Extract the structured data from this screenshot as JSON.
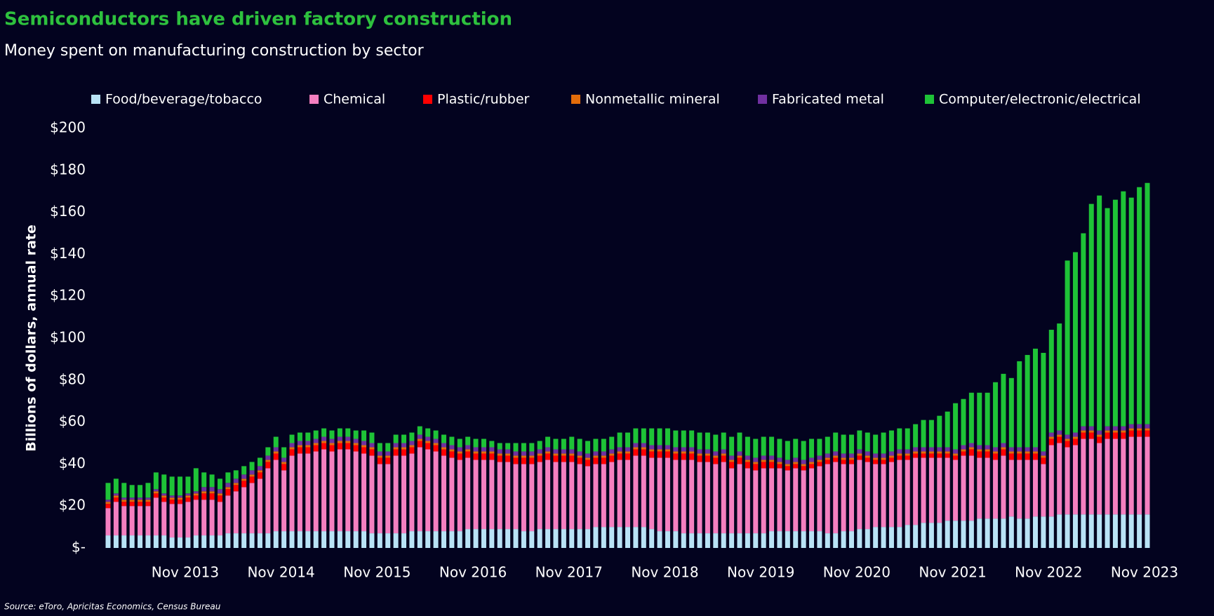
{
  "chart_data": {
    "type": "stacked_bar",
    "title": "Semiconductors have driven factory construction",
    "subtitle": "Money spent on manufacturing construction by sector",
    "y_label": "Billions of dollars, annual rate",
    "source": "Source: eToro, Apricitas Economics, Census Bureau",
    "background": "#03031f",
    "legend": "top",
    "ylim": [
      0,
      200
    ],
    "yticks": [
      {
        "value": 0,
        "label": "$-"
      },
      {
        "value": 20,
        "label": "$20"
      },
      {
        "value": 40,
        "label": "$40"
      },
      {
        "value": 60,
        "label": "$60"
      },
      {
        "value": 80,
        "label": "$80"
      },
      {
        "value": 100,
        "label": "$100"
      },
      {
        "value": 120,
        "label": "$120"
      },
      {
        "value": 140,
        "label": "$140"
      },
      {
        "value": 160,
        "label": "$160"
      },
      {
        "value": 180,
        "label": "$180"
      },
      {
        "value": 200,
        "label": "$200"
      }
    ],
    "categories": [
      null,
      null,
      null,
      null,
      null,
      null,
      null,
      null,
      null,
      null,
      "Nov 2013",
      null,
      null,
      null,
      null,
      null,
      null,
      null,
      null,
      null,
      null,
      null,
      "Nov 2014",
      null,
      null,
      null,
      null,
      null,
      null,
      null,
      null,
      null,
      null,
      null,
      "Nov 2015",
      null,
      null,
      null,
      null,
      null,
      null,
      null,
      null,
      null,
      null,
      null,
      "Nov 2016",
      null,
      null,
      null,
      null,
      null,
      null,
      null,
      null,
      null,
      null,
      null,
      "Nov 2017",
      null,
      null,
      null,
      null,
      null,
      null,
      null,
      null,
      null,
      null,
      null,
      "Nov 2018",
      null,
      null,
      null,
      null,
      null,
      null,
      null,
      null,
      null,
      null,
      null,
      "Nov 2019",
      null,
      null,
      null,
      null,
      null,
      null,
      null,
      null,
      null,
      null,
      null,
      "Nov 2020",
      null,
      null,
      null,
      null,
      null,
      null,
      null,
      null,
      null,
      null,
      null,
      "Nov 2021",
      null,
      null,
      null,
      null,
      null,
      null,
      null,
      null,
      null,
      null,
      null,
      "Nov 2022",
      null,
      null,
      null,
      null,
      null,
      null,
      null,
      null,
      null,
      null,
      null,
      "Nov 2023"
    ],
    "series": [
      {
        "name": "Food/beverage/tobacco",
        "color": "#b9e3f6",
        "values": [
          6,
          6,
          6,
          6,
          6,
          6,
          6,
          6,
          5,
          5,
          5,
          6,
          6,
          6,
          6,
          7,
          7,
          7,
          7,
          7,
          7,
          8,
          8,
          8,
          8,
          8,
          8,
          8,
          8,
          8,
          8,
          8,
          8,
          7,
          7,
          7,
          7,
          7,
          8,
          8,
          8,
          8,
          8,
          8,
          8,
          9,
          9,
          9,
          9,
          9,
          9,
          9,
          8,
          8,
          9,
          9,
          9,
          9,
          9,
          9,
          9,
          10,
          10,
          10,
          10,
          10,
          10,
          10,
          9,
          8,
          8,
          8,
          7,
          7,
          7,
          7,
          7,
          7,
          7,
          7,
          7,
          7,
          7,
          8,
          8,
          8,
          8,
          8,
          8,
          8,
          7,
          7,
          8,
          8,
          9,
          9,
          10,
          10,
          10,
          10,
          11,
          11,
          12,
          12,
          12,
          13,
          13,
          13,
          13,
          14,
          14,
          14,
          14,
          15,
          14,
          14,
          15,
          15,
          15,
          16,
          16,
          16,
          16,
          16,
          16,
          16,
          16,
          16,
          16,
          16,
          16
        ]
      },
      {
        "name": "Chemical",
        "color": "#f47fc0",
        "values": [
          13,
          16,
          14,
          14,
          14,
          14,
          18,
          16,
          16,
          16,
          17,
          17,
          17,
          17,
          16,
          18,
          20,
          22,
          24,
          26,
          31,
          34,
          29,
          36,
          37,
          37,
          38,
          39,
          38,
          39,
          39,
          38,
          37,
          37,
          33,
          33,
          37,
          37,
          37,
          40,
          39,
          38,
          36,
          35,
          34,
          34,
          33,
          33,
          33,
          32,
          32,
          31,
          32,
          32,
          32,
          33,
          32,
          32,
          32,
          31,
          30,
          30,
          30,
          31,
          32,
          32,
          34,
          34,
          34,
          35,
          35,
          34,
          35,
          35,
          34,
          34,
          33,
          34,
          31,
          33,
          31,
          30,
          31,
          30,
          30,
          29,
          30,
          29,
          30,
          31,
          33,
          34,
          32,
          32,
          33,
          32,
          30,
          30,
          31,
          32,
          31,
          32,
          31,
          31,
          31,
          30,
          29,
          31,
          31,
          29,
          29,
          28,
          30,
          27,
          28,
          28,
          27,
          25,
          34,
          34,
          32,
          33,
          36,
          36,
          34,
          36,
          36,
          36,
          37,
          37,
          37
        ]
      },
      {
        "name": "Plastic/rubber",
        "color": "#ff0000",
        "values": [
          2,
          2,
          2,
          2,
          2,
          2,
          2,
          2,
          2,
          2,
          2,
          2,
          3,
          3,
          3,
          3,
          3,
          3,
          3,
          3,
          3,
          3,
          3,
          3,
          3,
          3,
          3,
          3,
          3,
          3,
          3,
          3,
          3,
          3,
          3,
          3,
          3,
          3,
          3,
          3,
          3,
          3,
          3,
          3,
          3,
          3,
          3,
          3,
          3,
          3,
          3,
          3,
          3,
          3,
          3,
          3,
          3,
          3,
          3,
          3,
          3,
          3,
          3,
          3,
          3,
          3,
          3,
          3,
          3,
          3,
          3,
          3,
          3,
          3,
          3,
          3,
          3,
          3,
          3,
          3,
          3,
          3,
          3,
          3,
          2,
          2,
          2,
          2,
          2,
          2,
          2,
          2,
          2,
          2,
          2,
          2,
          2,
          2,
          2,
          2,
          2,
          2,
          2,
          2,
          2,
          2,
          2,
          2,
          3,
          3,
          3,
          3,
          3,
          3,
          3,
          3,
          3,
          3,
          3,
          3,
          3,
          3,
          3,
          3,
          3,
          3,
          3,
          3,
          3,
          3,
          3
        ]
      },
      {
        "name": "Nonmetallic mineral",
        "color": "#e36c0a",
        "values": [
          1,
          1,
          1,
          1,
          1,
          1,
          1,
          1,
          1,
          1,
          1,
          1,
          1,
          1,
          1,
          1,
          1,
          1,
          1,
          1,
          1,
          1,
          1,
          1,
          1,
          1,
          1,
          1,
          1,
          1,
          1,
          1,
          1,
          1,
          1,
          1,
          1,
          1,
          1,
          1,
          1,
          1,
          1,
          1,
          1,
          1,
          1,
          1,
          1,
          1,
          1,
          1,
          1,
          1,
          1,
          1,
          1,
          1,
          1,
          1,
          1,
          1,
          1,
          1,
          1,
          1,
          1,
          1,
          1,
          1,
          1,
          1,
          1,
          1,
          1,
          1,
          1,
          1,
          1,
          1,
          1,
          1,
          1,
          1,
          1,
          1,
          1,
          1,
          1,
          1,
          1,
          1,
          1,
          1,
          1,
          1,
          1,
          1,
          1,
          1,
          1,
          1,
          1,
          1,
          1,
          1,
          1,
          1,
          1,
          1,
          1,
          1,
          1,
          1,
          1,
          1,
          1,
          1,
          1,
          1,
          1,
          1,
          1,
          1,
          1,
          1,
          1,
          1,
          1,
          1,
          1
        ]
      },
      {
        "name": "Fabricated metal",
        "color": "#7030a0",
        "values": [
          1,
          1,
          1,
          1,
          1,
          1,
          1,
          1,
          1,
          1,
          1,
          1,
          2,
          2,
          2,
          2,
          2,
          2,
          2,
          2,
          2,
          2,
          2,
          2,
          2,
          2,
          2,
          2,
          2,
          2,
          2,
          2,
          2,
          2,
          2,
          2,
          2,
          2,
          2,
          2,
          2,
          2,
          2,
          2,
          2,
          2,
          2,
          2,
          2,
          2,
          2,
          2,
          2,
          2,
          2,
          2,
          2,
          2,
          2,
          2,
          2,
          2,
          2,
          2,
          2,
          2,
          2,
          2,
          2,
          2,
          2,
          2,
          2,
          2,
          2,
          2,
          2,
          2,
          2,
          2,
          2,
          2,
          2,
          2,
          2,
          2,
          2,
          2,
          2,
          2,
          2,
          2,
          2,
          2,
          2,
          2,
          2,
          2,
          2,
          2,
          2,
          2,
          2,
          2,
          2,
          2,
          2,
          2,
          2,
          2,
          2,
          2,
          2,
          2,
          2,
          2,
          2,
          2,
          2,
          2,
          2,
          2,
          2,
          2,
          2,
          2,
          2,
          2,
          2,
          2,
          2
        ]
      },
      {
        "name": "Computer/electronic/electrical",
        "color": "#1ec337",
        "values": [
          8,
          7,
          7,
          6,
          6,
          7,
          8,
          9,
          9,
          9,
          8,
          11,
          7,
          6,
          5,
          5,
          4,
          4,
          4,
          4,
          4,
          5,
          5,
          4,
          4,
          4,
          4,
          4,
          4,
          4,
          4,
          4,
          5,
          5,
          4,
          4,
          4,
          4,
          4,
          4,
          4,
          4,
          4,
          4,
          4,
          4,
          4,
          4,
          3,
          3,
          3,
          4,
          4,
          4,
          4,
          5,
          5,
          5,
          6,
          6,
          6,
          6,
          6,
          6,
          7,
          7,
          7,
          7,
          8,
          8,
          8,
          8,
          8,
          8,
          8,
          8,
          8,
          8,
          9,
          9,
          9,
          9,
          9,
          9,
          9,
          9,
          9,
          9,
          9,
          8,
          8,
          9,
          9,
          9,
          9,
          9,
          9,
          10,
          10,
          10,
          10,
          11,
          13,
          13,
          15,
          17,
          22,
          22,
          24,
          25,
          25,
          31,
          33,
          33,
          41,
          44,
          47,
          47,
          49,
          51,
          83,
          86,
          92,
          106,
          112,
          104,
          108,
          112,
          108,
          113,
          115
        ]
      }
    ]
  }
}
